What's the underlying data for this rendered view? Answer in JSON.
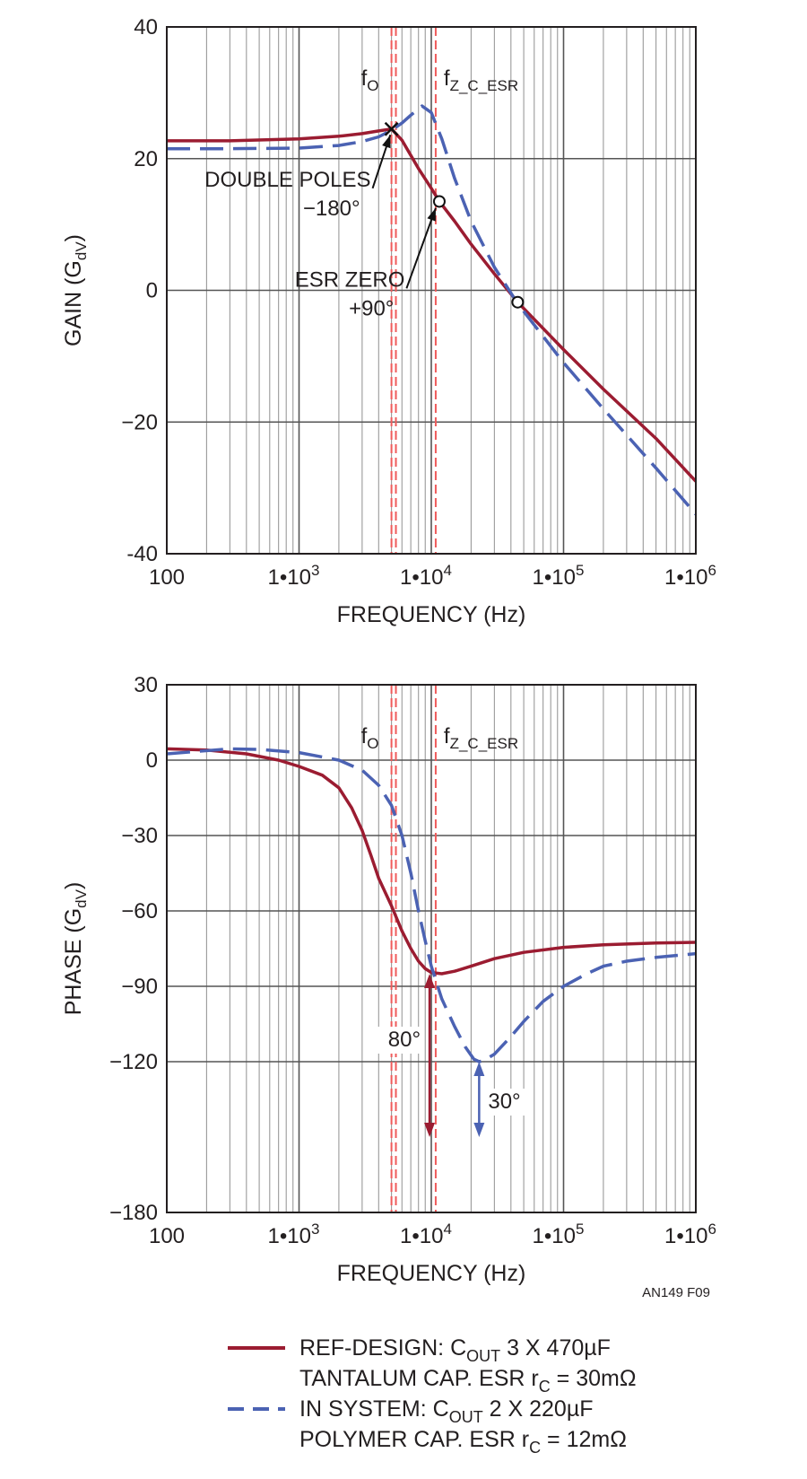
{
  "figure_id": "AN149 F09",
  "legend": [
    {
      "line1": "REF-DESIGN: C",
      "sub1": "OUT",
      "rest1": " 3 X 470µF",
      "line2": "TANTALUM CAP. ESR r",
      "sub2": "C",
      "rest2": " = 30mΩ",
      "color": "#9b1c31",
      "style": "solid"
    },
    {
      "line1": "IN SYSTEM: C",
      "sub1": "OUT",
      "rest1": " 2 X 220µF",
      "line2": "POLYMER CAP. ESR r",
      "sub2": "C",
      "rest2": " = 12mΩ",
      "color": "#4b62b3",
      "style": "dashed"
    }
  ],
  "chart_data": [
    {
      "type": "line",
      "xscale": "log",
      "xlim": [
        100,
        1000000
      ],
      "ylim": [
        -40,
        40
      ],
      "yticks": [
        -40,
        -20,
        0,
        20,
        40
      ],
      "ytick_labels": [
        "-40",
        "−20",
        "0",
        "20",
        "40"
      ],
      "xticks": [
        100,
        1000,
        10000,
        100000,
        1000000
      ],
      "xtick_labels": [
        {
          "base": "100",
          "exp": ""
        },
        {
          "base": "1•10",
          "exp": "3"
        },
        {
          "base": "1•10",
          "exp": "4"
        },
        {
          "base": "1•10",
          "exp": "5"
        },
        {
          "base": "1•10",
          "exp": "6"
        }
      ],
      "xlabel": "FREQUENCY (Hz)",
      "ylabel": {
        "main": "GAIN (G",
        "sub": "dV",
        "end": ")"
      },
      "grid": true,
      "vlines": [
        {
          "x": 5000,
          "label": "f",
          "sub": "O"
        },
        {
          "x": 5400,
          "label": "",
          "sub": ""
        },
        {
          "x": 10800,
          "label": "f",
          "sub": "Z_C_ESR"
        }
      ],
      "series": [
        {
          "color": "#9b1c31",
          "style": "solid",
          "points": [
            [
              100,
              22.7
            ],
            [
              300,
              22.7
            ],
            [
              1000,
              23.0
            ],
            [
              2000,
              23.4
            ],
            [
              3000,
              23.8
            ],
            [
              4000,
              24.2
            ],
            [
              5000,
              24.5
            ],
            [
              6000,
              22.8
            ],
            [
              8000,
              18.5
            ],
            [
              10000,
              15.5
            ],
            [
              11500,
              13.5
            ],
            [
              15000,
              10.5
            ],
            [
              20000,
              7.0
            ],
            [
              30000,
              2.5
            ],
            [
              45000,
              -1.8
            ],
            [
              100000,
              -9.0
            ],
            [
              200000,
              -15.0
            ],
            [
              500000,
              -22.5
            ],
            [
              1000000,
              -29.0
            ]
          ]
        },
        {
          "color": "#4b62b3",
          "style": "dashed",
          "points": [
            [
              100,
              21.5
            ],
            [
              300,
              21.5
            ],
            [
              1000,
              21.6
            ],
            [
              2000,
              22.0
            ],
            [
              3000,
              22.6
            ],
            [
              4000,
              23.3
            ],
            [
              5000,
              24.3
            ],
            [
              6000,
              25.4
            ],
            [
              7000,
              26.6
            ],
            [
              8500,
              28.0
            ],
            [
              10000,
              27.0
            ],
            [
              12000,
              23.0
            ],
            [
              15000,
              17.0
            ],
            [
              20000,
              10.5
            ],
            [
              30000,
              3.5
            ],
            [
              45000,
              -2.0
            ],
            [
              100000,
              -11.0
            ],
            [
              200000,
              -18.0
            ],
            [
              500000,
              -27.0
            ],
            [
              1000000,
              -34.0
            ]
          ]
        }
      ],
      "markers": [
        {
          "type": "x",
          "x": 5000,
          "y": 24.5
        },
        {
          "type": "o",
          "x": 11500,
          "y": 13.5
        },
        {
          "type": "o",
          "x": 45000,
          "y": -1.8
        }
      ],
      "annotations": [
        {
          "lines": [
            "DOUBLE POLES",
            "−180°"
          ],
          "arrow_from": [
            3600,
            15.5
          ],
          "arrow_to": [
            4900,
            23.6
          ]
        },
        {
          "lines": [
            "ESR ZERO",
            "+90°"
          ],
          "arrow_from": [
            6500,
            0.3
          ],
          "arrow_to": [
            10800,
            12.5
          ]
        }
      ]
    },
    {
      "type": "line",
      "xscale": "log",
      "xlim": [
        100,
        1000000
      ],
      "ylim": [
        -180,
        30
      ],
      "yticks": [
        -180,
        -120,
        -90,
        -60,
        -30,
        0,
        30
      ],
      "ytick_labels": [
        "−180",
        "−120",
        "−90",
        "−60",
        "−30",
        "0",
        "30"
      ],
      "xticks": [
        100,
        1000,
        10000,
        100000,
        1000000
      ],
      "xtick_labels": [
        {
          "base": "100",
          "exp": ""
        },
        {
          "base": "1•10",
          "exp": "3"
        },
        {
          "base": "1•10",
          "exp": "4"
        },
        {
          "base": "1•10",
          "exp": "5"
        },
        {
          "base": "1•10",
          "exp": "6"
        }
      ],
      "xlabel": "FREQUENCY (Hz)",
      "ylabel": {
        "main": "PHASE (G",
        "sub": "dV",
        "end": ")"
      },
      "grid": true,
      "vlines": [
        {
          "x": 5000,
          "label": "f",
          "sub": "O"
        },
        {
          "x": 5400,
          "label": "",
          "sub": ""
        },
        {
          "x": 10800,
          "label": "f",
          "sub": "Z_C_ESR"
        }
      ],
      "series": [
        {
          "color": "#9b1c31",
          "style": "solid",
          "points": [
            [
              100,
              4.5
            ],
            [
              200,
              4.0
            ],
            [
              400,
              2.5
            ],
            [
              700,
              0.0
            ],
            [
              1000,
              -2.5
            ],
            [
              1500,
              -6.0
            ],
            [
              2000,
              -11.0
            ],
            [
              2500,
              -19.0
            ],
            [
              3000,
              -28.0
            ],
            [
              3500,
              -38.0
            ],
            [
              4000,
              -47.0
            ],
            [
              5000,
              -58.0
            ],
            [
              6000,
              -68.0
            ],
            [
              7000,
              -75.0
            ],
            [
              8000,
              -80.0
            ],
            [
              9000,
              -83.0
            ],
            [
              10000,
              -84.5
            ],
            [
              12000,
              -85.0
            ],
            [
              15000,
              -84.0
            ],
            [
              20000,
              -82.0
            ],
            [
              30000,
              -79.0
            ],
            [
              50000,
              -76.5
            ],
            [
              100000,
              -74.5
            ],
            [
              200000,
              -73.5
            ],
            [
              500000,
              -72.8
            ],
            [
              1000000,
              -72.5
            ]
          ]
        },
        {
          "color": "#4b62b3",
          "style": "dashed",
          "points": [
            [
              100,
              2.5
            ],
            [
              300,
              4.5
            ],
            [
              500,
              4.3
            ],
            [
              1000,
              3.0
            ],
            [
              2000,
              0.0
            ],
            [
              3000,
              -4.0
            ],
            [
              4000,
              -10.0
            ],
            [
              5000,
              -18.0
            ],
            [
              6000,
              -30.0
            ],
            [
              7000,
              -45.0
            ],
            [
              8000,
              -60.0
            ],
            [
              9000,
              -72.0
            ],
            [
              10000,
              -82.0
            ],
            [
              12000,
              -95.0
            ],
            [
              15000,
              -106.0
            ],
            [
              18000,
              -114.0
            ],
            [
              21000,
              -119.0
            ],
            [
              23000,
              -120.0
            ],
            [
              25000,
              -119.5
            ],
            [
              30000,
              -117.0
            ],
            [
              40000,
              -110.0
            ],
            [
              50000,
              -104.0
            ],
            [
              70000,
              -96.0
            ],
            [
              100000,
              -90.0
            ],
            [
              150000,
              -85.0
            ],
            [
              200000,
              -82.0
            ],
            [
              300000,
              -80.0
            ],
            [
              500000,
              -78.5
            ],
            [
              1000000,
              -77.0
            ]
          ]
        }
      ],
      "arrows": [
        {
          "x": 9700,
          "from": -85,
          "to": -150,
          "color": "#9b1c31",
          "label": "80°",
          "label_side": "left"
        },
        {
          "x": 23000,
          "from": -120,
          "to": -150,
          "color": "#4b62b3",
          "label": "30°",
          "label_side": "right"
        }
      ]
    }
  ]
}
